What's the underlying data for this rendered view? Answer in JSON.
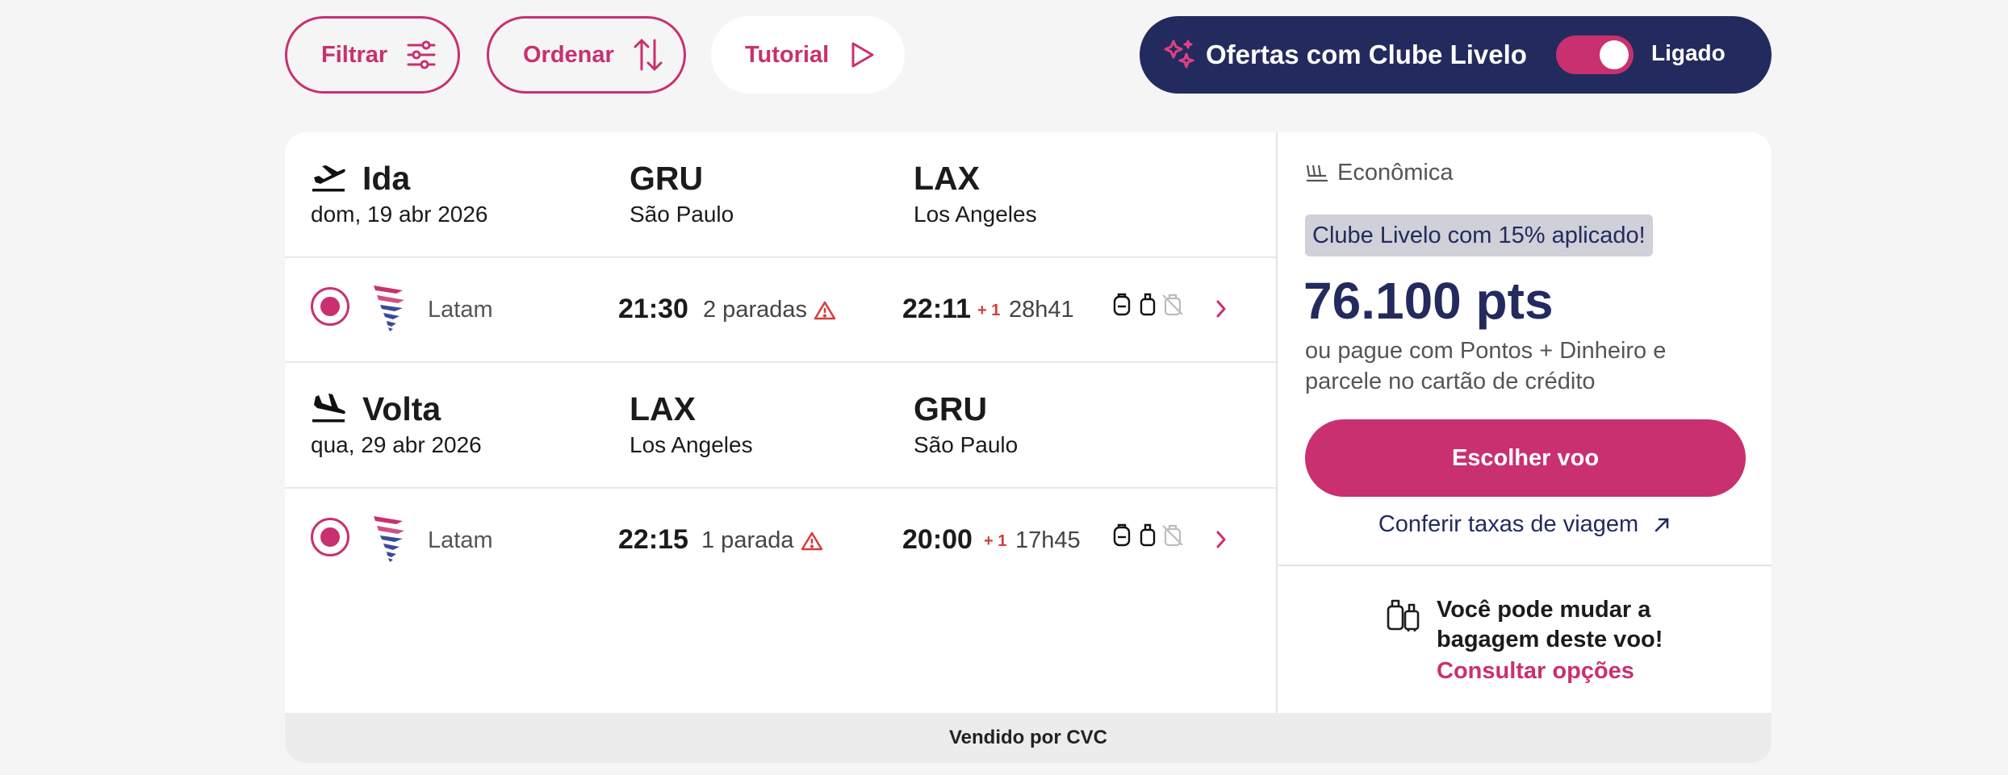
{
  "toolbar": {
    "filter_label": "Filtrar",
    "order_label": "Ordenar",
    "tutorial_label": "Tutorial",
    "offer_label": "Ofertas com Clube Livelo",
    "toggle_label": "Ligado",
    "toggle_on": true
  },
  "colors": {
    "brand": "#c9306f",
    "navy": "#232a5e",
    "warning": "#d63c3c"
  },
  "outbound": {
    "direction": "Ida",
    "date": "dom, 19 abr 2026",
    "origin_code": "GRU",
    "origin_city": "São Paulo",
    "dest_code": "LAX",
    "dest_city": "Los Angeles",
    "flight": {
      "airline": "Latam",
      "dep_time": "21:30",
      "stops": "2 paradas",
      "arr_time": "22:11",
      "day_offset": "+ 1",
      "duration": "28h41"
    }
  },
  "inbound": {
    "direction": "Volta",
    "date": "qua, 29 abr 2026",
    "origin_code": "LAX",
    "origin_city": "Los Angeles",
    "dest_code": "GRU",
    "dest_city": "São Paulo",
    "flight": {
      "airline": "Latam",
      "dep_time": "22:15",
      "stops": "1 parada",
      "arr_time": "20:00",
      "day_offset": "+ 1",
      "duration": "17h45"
    }
  },
  "fare": {
    "cabin": "Econômica",
    "promo": "Clube Livelo com 15% aplicado!",
    "points": "76.100 pts",
    "pay_note": "ou pague com Pontos + Dinheiro e parcele no cartão de crédito",
    "choose_label": "Escolher voo",
    "taxes_label": "Conferir taxas de viagem"
  },
  "baggage": {
    "text": "Você pode mudar a bagagem deste voo!",
    "link": "Consultar opções"
  },
  "footer": {
    "sold_by": "Vendido por CVC"
  },
  "icons": [
    "filter-icon",
    "sort-icon",
    "play-icon",
    "sparkle-icon",
    "takeoff-icon",
    "landing-icon",
    "latam-logo-icon",
    "warning-icon",
    "backpack-icon",
    "carry-on-icon",
    "checked-bag-off-icon",
    "chevron-right-icon",
    "seat-icon",
    "external-link-icon",
    "luggage-icon"
  ]
}
